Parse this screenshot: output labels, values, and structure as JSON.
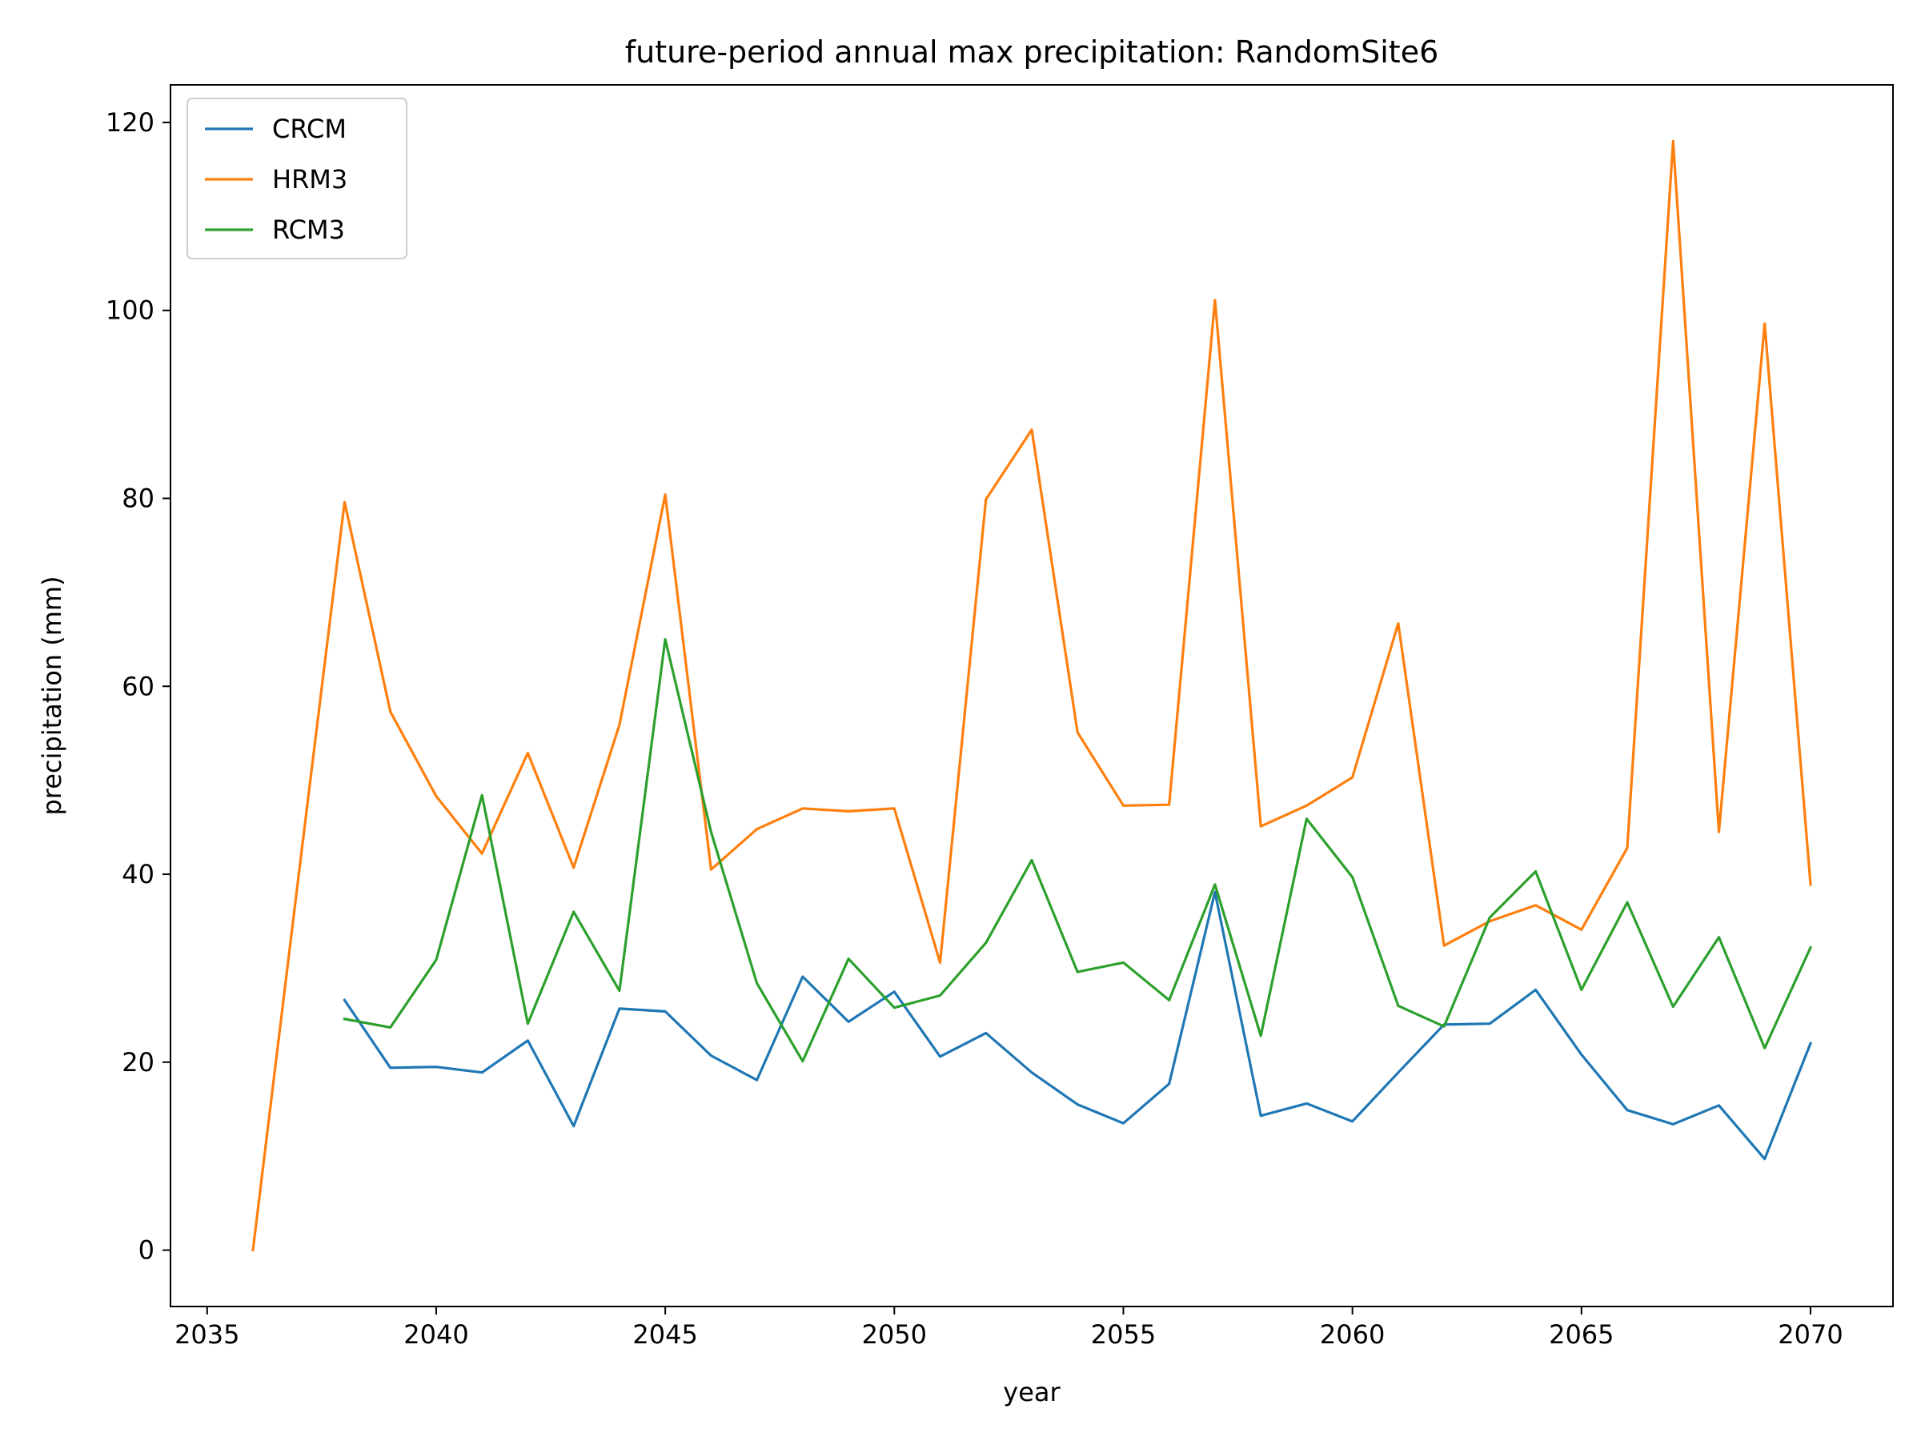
{
  "chart_data": {
    "type": "line",
    "title": "future-period annual max precipitation: RandomSite6",
    "xlabel": "year",
    "ylabel": "precipitation (mm)",
    "xlim": [
      2034.2,
      2071.8
    ],
    "ylim": [
      -6,
      124
    ],
    "x_ticks": [
      2035,
      2040,
      2045,
      2050,
      2055,
      2060,
      2065,
      2070
    ],
    "y_ticks": [
      0,
      20,
      40,
      60,
      80,
      100,
      120
    ],
    "grid": false,
    "legend_position": "top-left",
    "series": [
      {
        "name": "CRCM",
        "color": "#1f77b4",
        "x": [
          2038,
          2039,
          2040,
          2041,
          2042,
          2043,
          2044,
          2045,
          2046,
          2047,
          2048,
          2049,
          2050,
          2051,
          2052,
          2053,
          2054,
          2055,
          2056,
          2057,
          2058,
          2059,
          2060,
          2061,
          2062,
          2063,
          2064,
          2065,
          2066,
          2067,
          2068,
          2069,
          2070
        ],
        "values": [
          26.6,
          19.4,
          19.5,
          18.9,
          22.3,
          13.2,
          25.7,
          25.4,
          20.7,
          18.1,
          29.1,
          24.3,
          27.5,
          20.6,
          23.1,
          18.9,
          15.5,
          13.5,
          17.7,
          38.1,
          14.3,
          15.6,
          13.7,
          18.9,
          24.0,
          24.1,
          27.7,
          20.8,
          14.9,
          13.4,
          15.4,
          9.7,
          22.0
        ]
      },
      {
        "name": "HRM3",
        "color": "#ff7f0e",
        "x": [
          2036,
          2037,
          2038,
          2039,
          2040,
          2041,
          2042,
          2043,
          2044,
          2045,
          2046,
          2047,
          2048,
          2049,
          2050,
          2051,
          2052,
          2053,
          2054,
          2055,
          2056,
          2057,
          2058,
          2059,
          2060,
          2061,
          2062,
          2063,
          2064,
          2065,
          2066,
          2067,
          2068,
          2069,
          2070
        ],
        "values": [
          0.0,
          40.0,
          79.6,
          57.3,
          48.3,
          42.2,
          52.9,
          40.7,
          55.9,
          80.4,
          40.5,
          44.8,
          47.0,
          46.7,
          47.0,
          30.6,
          79.9,
          87.3,
          55.1,
          47.3,
          47.4,
          101.1,
          45.1,
          47.3,
          50.3,
          66.7,
          32.4,
          35.0,
          36.7,
          34.1,
          42.8,
          118.0,
          44.5,
          98.6,
          38.9
        ]
      },
      {
        "name": "RCM3",
        "color": "#2ca02c",
        "x": [
          2038,
          2039,
          2040,
          2041,
          2042,
          2043,
          2044,
          2045,
          2046,
          2047,
          2048,
          2049,
          2050,
          2051,
          2052,
          2053,
          2054,
          2055,
          2056,
          2057,
          2058,
          2059,
          2060,
          2061,
          2062,
          2063,
          2064,
          2065,
          2066,
          2067,
          2068,
          2069,
          2070
        ],
        "values": [
          24.6,
          23.7,
          30.9,
          48.4,
          24.1,
          36.0,
          27.6,
          65.0,
          44.5,
          28.4,
          20.1,
          31.0,
          25.8,
          27.1,
          32.7,
          41.5,
          29.6,
          30.6,
          26.6,
          38.9,
          22.8,
          45.9,
          39.7,
          26.0,
          23.8,
          35.4,
          40.3,
          27.7,
          37.0,
          25.9,
          33.3,
          21.5,
          32.2
        ]
      }
    ]
  }
}
